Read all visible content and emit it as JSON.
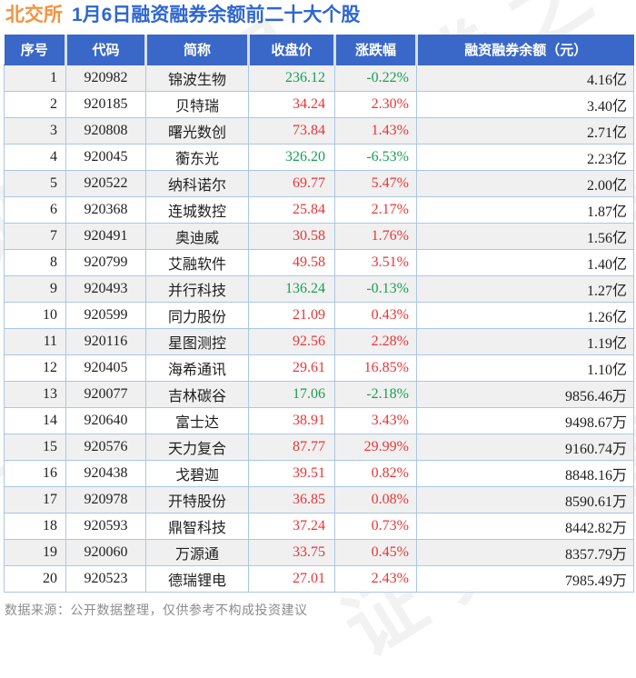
{
  "title": {
    "prefix": "北交所",
    "main": "1月6日融资融券余额前二十大个股"
  },
  "watermark": {
    "text": "证券之星"
  },
  "footer": {
    "source_note": "数据来源：公开数据整理，仅供参考不构成投资建议"
  },
  "colors": {
    "title_prefix_orange": "#f5923e",
    "title_blue": "#2e66d3",
    "header_bg_blue": "#3a68c8",
    "header_text": "#ffffff",
    "up_red": "#ee3434",
    "down_green": "#17a053",
    "row_alt_gray": "#f0f0f0",
    "grid_light_blue": "#aac7e5",
    "body_text": "#1f1f1f",
    "footer_gray": "#8c8c8c"
  },
  "chart_data": {
    "type": "table",
    "title": "北交所 1月6日融资融券余额前二十大个股",
    "columns": [
      "序号",
      "代码",
      "简称",
      "收盘价",
      "涨跌幅",
      "融资融券余额（元）"
    ],
    "rows": [
      [
        "1",
        "920982",
        "锦波生物",
        "236.12",
        "-0.22%",
        "4.16亿"
      ],
      [
        "2",
        "920185",
        "贝特瑞",
        "34.24",
        "2.30%",
        "3.40亿"
      ],
      [
        "3",
        "920808",
        "曙光数创",
        "73.84",
        "1.43%",
        "2.71亿"
      ],
      [
        "4",
        "920045",
        "蘅东光",
        "326.20",
        "-6.53%",
        "2.23亿"
      ],
      [
        "5",
        "920522",
        "纳科诺尔",
        "69.77",
        "5.47%",
        "2.00亿"
      ],
      [
        "6",
        "920368",
        "连城数控",
        "25.84",
        "2.17%",
        "1.87亿"
      ],
      [
        "7",
        "920491",
        "奥迪威",
        "30.58",
        "1.76%",
        "1.56亿"
      ],
      [
        "8",
        "920799",
        "艾融软件",
        "49.58",
        "3.51%",
        "1.40亿"
      ],
      [
        "9",
        "920493",
        "并行科技",
        "136.24",
        "-0.13%",
        "1.27亿"
      ],
      [
        "10",
        "920599",
        "同力股份",
        "21.09",
        "0.43%",
        "1.26亿"
      ],
      [
        "11",
        "920116",
        "星图测控",
        "92.56",
        "2.28%",
        "1.19亿"
      ],
      [
        "12",
        "920405",
        "海希通讯",
        "29.61",
        "16.85%",
        "1.10亿"
      ],
      [
        "13",
        "920077",
        "吉林碳谷",
        "17.06",
        "-2.18%",
        "9856.46万"
      ],
      [
        "14",
        "920640",
        "富士达",
        "38.91",
        "3.43%",
        "9498.67万"
      ],
      [
        "15",
        "920576",
        "天力复合",
        "87.77",
        "29.99%",
        "9160.74万"
      ],
      [
        "16",
        "920438",
        "戈碧迦",
        "39.51",
        "0.82%",
        "8848.16万"
      ],
      [
        "17",
        "920978",
        "开特股份",
        "36.85",
        "0.08%",
        "8590.61万"
      ],
      [
        "18",
        "920593",
        "鼎智科技",
        "37.24",
        "0.73%",
        "8442.82万"
      ],
      [
        "19",
        "920060",
        "万源通",
        "33.75",
        "0.45%",
        "8357.79万"
      ],
      [
        "20",
        "920523",
        "德瑞锂电",
        "27.01",
        "2.43%",
        "7985.49万"
      ]
    ]
  }
}
